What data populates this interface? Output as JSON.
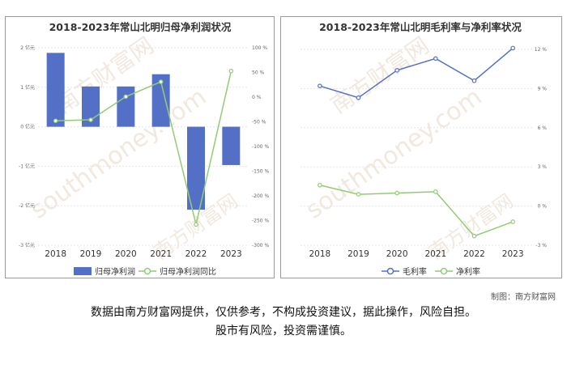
{
  "left_chart": {
    "title": "2018-2023年常山北明归母净利润状况",
    "legend": {
      "bar_label": "归母净利润",
      "line_label": "归母净利润同比"
    },
    "chart_data": {
      "type": "bar",
      "categories": [
        "2018",
        "2019",
        "2020",
        "2021",
        "2022",
        "2023"
      ],
      "series": [
        {
          "name": "归母净利润",
          "type": "bar",
          "axis": "left",
          "unit": "亿元",
          "values": [
            1.87,
            1.02,
            1.02,
            1.33,
            -2.1,
            -0.97
          ],
          "color": "#5470c6"
        },
        {
          "name": "归母净利润同比",
          "type": "line",
          "axis": "right",
          "unit": "%",
          "values": [
            -48,
            -46,
            1,
            31,
            -258,
            53
          ],
          "color": "#91cc75"
        }
      ],
      "y_left": {
        "ylim": [
          -3,
          2
        ],
        "ticks": [
          "2 亿元",
          "1 亿元",
          "0 亿元",
          "-1 亿元",
          "-2 亿元",
          "-3 亿元"
        ]
      },
      "y_right": {
        "ylim": [
          -300,
          100
        ],
        "ticks": [
          "100 %",
          "50 %",
          "0 %",
          "-50 %",
          "-100 %",
          "-150 %",
          "-200 %",
          "-250 %",
          "-300 %"
        ]
      }
    }
  },
  "right_chart": {
    "title": "2018-2023年常山北明毛利率与净利率状况",
    "legend": {
      "a": "毛利率",
      "b": "净利率"
    },
    "chart_data": {
      "type": "line",
      "categories": [
        "2018",
        "2019",
        "2020",
        "2021",
        "2022",
        "2023"
      ],
      "series": [
        {
          "name": "毛利率",
          "unit": "%",
          "values": [
            9.2,
            8.3,
            10.4,
            11.3,
            9.6,
            12.1
          ],
          "color": "#5470c6"
        },
        {
          "name": "净利率",
          "unit": "%",
          "values": [
            1.6,
            0.9,
            1.0,
            1.1,
            -2.3,
            -1.2
          ],
          "color": "#91cc75"
        }
      ],
      "ylim": [
        -3,
        12
      ],
      "y_ticks": [
        "12 %",
        "9 %",
        "6 %",
        "3 %",
        "0 %",
        "-3 %"
      ]
    }
  },
  "credit": "制图：南方财富网",
  "disclaimer_line1": "数据由南方财富网提供，仅供参考，不构成投资建议，据此操作，风险自担。",
  "disclaimer_line2": "股市有风险，投资需谨慎。",
  "watermark": {
    "name": "南方财富网",
    "url": "southmoney.com"
  }
}
